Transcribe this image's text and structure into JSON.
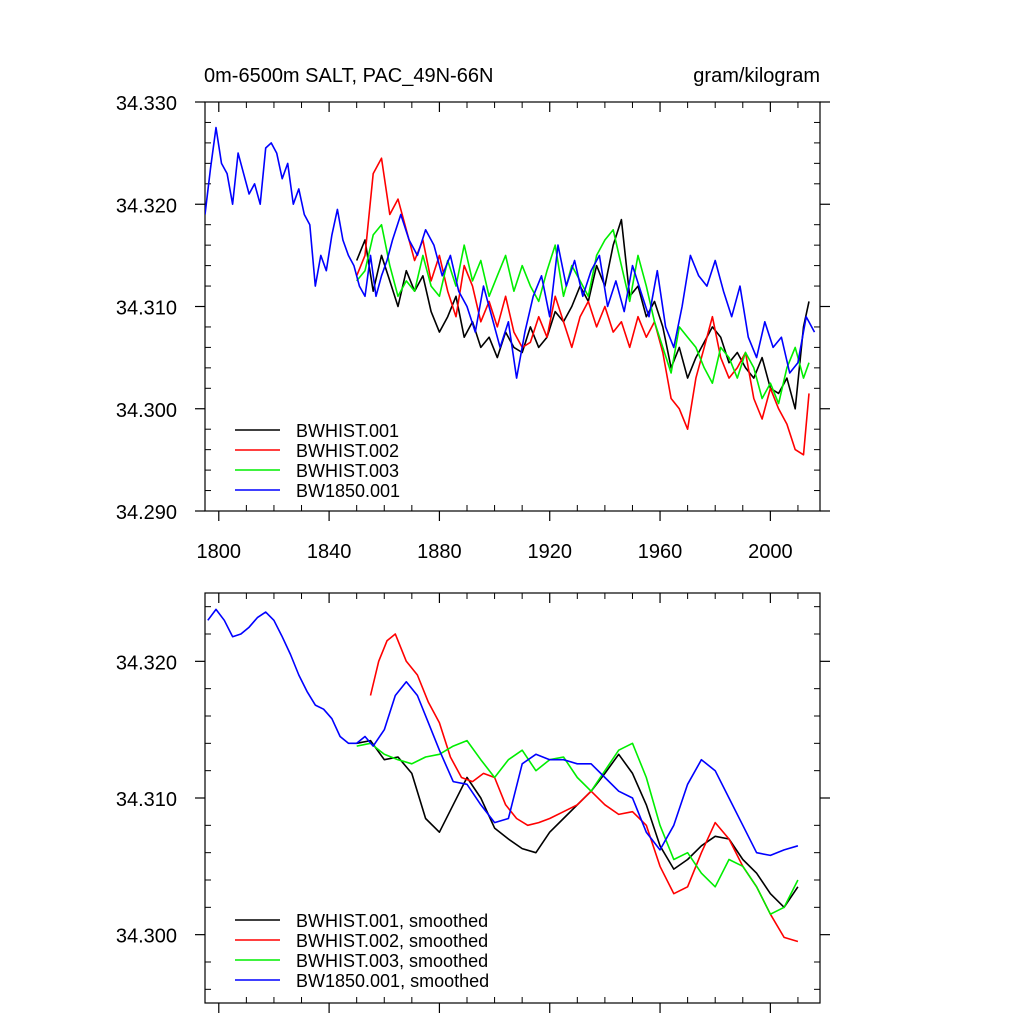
{
  "chart_data": [
    {
      "type": "line",
      "title": "0m-6500m SALT, PAC_49N-66N",
      "units": "gram/kilogram",
      "xlim": [
        1795,
        2018
      ],
      "ylim": [
        34.29,
        34.33
      ],
      "xticks": [
        1800,
        1840,
        1880,
        1920,
        1960,
        2000
      ],
      "xtick_labels": [
        "1800",
        "1840",
        "1880",
        "1920",
        "1960",
        "2000"
      ],
      "yticks": [
        34.29,
        34.3,
        34.31,
        34.32,
        34.33
      ],
      "ytick_labels": [
        "34.290",
        "34.300",
        "34.310",
        "34.320",
        "34.330"
      ],
      "legend_position": "bottom-left",
      "series": [
        {
          "name": "BWHIST.001",
          "color": "#000000",
          "x": [
            1850,
            1853,
            1856,
            1859,
            1862,
            1865,
            1868,
            1871,
            1874,
            1877,
            1880,
            1883,
            1886,
            1889,
            1892,
            1895,
            1898,
            1901,
            1904,
            1907,
            1910,
            1913,
            1916,
            1919,
            1922,
            1925,
            1928,
            1931,
            1934,
            1937,
            1940,
            1943,
            1946,
            1949,
            1952,
            1955,
            1958,
            1961,
            1964,
            1967,
            1970,
            1973,
            1976,
            1979,
            1982,
            1985,
            1988,
            1991,
            1994,
            1997,
            2000,
            2003,
            2006,
            2009,
            2012,
            2014
          ],
          "y": [
            34.3145,
            34.3165,
            34.3115,
            34.315,
            34.3125,
            34.31,
            34.3135,
            34.3115,
            34.313,
            34.3095,
            34.3075,
            34.309,
            34.311,
            34.307,
            34.3085,
            34.306,
            34.307,
            34.305,
            34.3075,
            34.306,
            34.3055,
            34.308,
            34.306,
            34.307,
            34.3095,
            34.3085,
            34.31,
            34.312,
            34.3105,
            34.314,
            34.312,
            34.316,
            34.3185,
            34.311,
            34.312,
            34.309,
            34.3105,
            34.308,
            34.304,
            34.306,
            34.303,
            34.305,
            34.3065,
            34.308,
            34.307,
            34.3045,
            34.3055,
            34.304,
            34.303,
            34.305,
            34.302,
            34.3015,
            34.303,
            34.3,
            34.308,
            34.3105
          ]
        },
        {
          "name": "BWHIST.002",
          "color": "#ff0000",
          "x": [
            1850,
            1853,
            1856,
            1859,
            1862,
            1865,
            1868,
            1871,
            1874,
            1877,
            1880,
            1883,
            1886,
            1889,
            1892,
            1895,
            1898,
            1901,
            1904,
            1907,
            1910,
            1913,
            1916,
            1919,
            1922,
            1925,
            1928,
            1931,
            1934,
            1937,
            1940,
            1943,
            1946,
            1949,
            1952,
            1955,
            1958,
            1961,
            1964,
            1967,
            1970,
            1973,
            1976,
            1979,
            1982,
            1985,
            1988,
            1991,
            1994,
            1997,
            2000,
            2003,
            2006,
            2009,
            2012,
            2014
          ],
          "y": [
            34.313,
            34.315,
            34.323,
            34.3245,
            34.319,
            34.3205,
            34.3175,
            34.3145,
            34.3165,
            34.3125,
            34.315,
            34.3115,
            34.309,
            34.314,
            34.312,
            34.3085,
            34.3105,
            34.308,
            34.311,
            34.3075,
            34.306,
            34.3065,
            34.309,
            34.307,
            34.311,
            34.3085,
            34.306,
            34.309,
            34.3105,
            34.308,
            34.31,
            34.3075,
            34.3085,
            34.306,
            34.309,
            34.307,
            34.3085,
            34.3055,
            34.301,
            34.3,
            34.298,
            34.303,
            34.306,
            34.309,
            34.305,
            34.303,
            34.304,
            34.3055,
            34.301,
            34.299,
            34.302,
            34.3,
            34.2985,
            34.296,
            34.2955,
            34.3015
          ]
        },
        {
          "name": "BWHIST.003",
          "color": "#00ee00",
          "x": [
            1850,
            1853,
            1856,
            1859,
            1862,
            1865,
            1868,
            1871,
            1874,
            1877,
            1880,
            1883,
            1886,
            1889,
            1892,
            1895,
            1898,
            1901,
            1904,
            1907,
            1910,
            1913,
            1916,
            1919,
            1922,
            1925,
            1928,
            1931,
            1934,
            1937,
            1940,
            1943,
            1946,
            1949,
            1952,
            1955,
            1958,
            1961,
            1964,
            1967,
            1970,
            1973,
            1976,
            1979,
            1982,
            1985,
            1988,
            1991,
            1994,
            1997,
            2000,
            2003,
            2006,
            2009,
            2012,
            2014
          ],
          "y": [
            34.3125,
            34.3135,
            34.317,
            34.318,
            34.314,
            34.311,
            34.3125,
            34.3115,
            34.315,
            34.312,
            34.311,
            34.3145,
            34.312,
            34.316,
            34.3125,
            34.3145,
            34.311,
            34.313,
            34.315,
            34.3115,
            34.314,
            34.312,
            34.3105,
            34.3135,
            34.316,
            34.311,
            34.314,
            34.3125,
            34.311,
            34.315,
            34.3165,
            34.3175,
            34.314,
            34.3105,
            34.315,
            34.312,
            34.3085,
            34.306,
            34.3035,
            34.308,
            34.307,
            34.306,
            34.304,
            34.3025,
            34.306,
            34.305,
            34.303,
            34.3055,
            34.304,
            34.301,
            34.3025,
            34.3005,
            34.304,
            34.306,
            34.303,
            34.3045
          ]
        },
        {
          "name": "BW1850.001",
          "color": "#0000ff",
          "x": [
            1795,
            1797,
            1799,
            1801,
            1803,
            1805,
            1807,
            1809,
            1811,
            1813,
            1815,
            1817,
            1819,
            1821,
            1823,
            1825,
            1827,
            1829,
            1831,
            1833,
            1835,
            1837,
            1839,
            1841,
            1843,
            1845,
            1847,
            1849,
            1851,
            1853,
            1855,
            1857,
            1859,
            1861,
            1863,
            1866,
            1869,
            1872,
            1875,
            1878,
            1881,
            1884,
            1887,
            1890,
            1893,
            1896,
            1899,
            1902,
            1905,
            1908,
            1911,
            1914,
            1917,
            1920,
            1923,
            1926,
            1929,
            1932,
            1935,
            1938,
            1941,
            1944,
            1947,
            1950,
            1953,
            1956,
            1959,
            1962,
            1965,
            1968,
            1971,
            1974,
            1977,
            1980,
            1983,
            1986,
            1989,
            1992,
            1995,
            1998,
            2001,
            2004,
            2007,
            2010,
            2013,
            2016
          ],
          "y": [
            34.319,
            34.3235,
            34.3275,
            34.324,
            34.323,
            34.32,
            34.325,
            34.323,
            34.321,
            34.322,
            34.32,
            34.3255,
            34.326,
            34.325,
            34.3225,
            34.324,
            34.32,
            34.3215,
            34.319,
            34.318,
            34.312,
            34.315,
            34.3135,
            34.317,
            34.3195,
            34.3165,
            34.315,
            34.314,
            34.312,
            34.311,
            34.315,
            34.311,
            34.313,
            34.3145,
            34.3165,
            34.319,
            34.3165,
            34.315,
            34.3175,
            34.316,
            34.313,
            34.315,
            34.3115,
            34.31,
            34.3075,
            34.312,
            34.309,
            34.306,
            34.3085,
            34.303,
            34.3075,
            34.311,
            34.313,
            34.309,
            34.316,
            34.312,
            34.3145,
            34.311,
            34.3135,
            34.315,
            34.31,
            34.3125,
            34.3095,
            34.314,
            34.3115,
            34.309,
            34.3135,
            34.308,
            34.306,
            34.31,
            34.315,
            34.313,
            34.312,
            34.3145,
            34.3115,
            34.309,
            34.312,
            34.307,
            34.305,
            34.3085,
            34.306,
            34.307,
            34.3035,
            34.3045,
            34.309,
            34.3075
          ]
        }
      ]
    },
    {
      "type": "line",
      "title": "",
      "xlim": [
        1795,
        2018
      ],
      "ylim": [
        34.295,
        34.325
      ],
      "xticks": [
        1800,
        1840,
        1880,
        1920,
        1960,
        2000
      ],
      "xtick_labels": [],
      "yticks": [
        34.3,
        34.31,
        34.32
      ],
      "ytick_labels": [
        "34.300",
        "34.310",
        "34.320"
      ],
      "legend_position": "bottom-left",
      "series": [
        {
          "name": "BWHIST.001, smoothed",
          "color": "#000000",
          "x": [
            1850,
            1855,
            1860,
            1865,
            1870,
            1875,
            1880,
            1885,
            1890,
            1895,
            1900,
            1905,
            1910,
            1915,
            1920,
            1925,
            1930,
            1935,
            1940,
            1945,
            1950,
            1955,
            1960,
            1965,
            1970,
            1975,
            1980,
            1985,
            1990,
            1995,
            2000,
            2005,
            2010
          ],
          "y": [
            34.314,
            34.3142,
            34.3128,
            34.313,
            34.3118,
            34.3085,
            34.3075,
            34.3095,
            34.3115,
            34.31,
            34.3078,
            34.307,
            34.3063,
            34.306,
            34.3075,
            34.3085,
            34.3095,
            34.3105,
            34.3118,
            34.3132,
            34.3118,
            34.3095,
            34.3065,
            34.3048,
            34.3055,
            34.3065,
            34.3072,
            34.307,
            34.3055,
            34.3045,
            34.303,
            34.302,
            34.3035
          ]
        },
        {
          "name": "BWHIST.002, smoothed",
          "color": "#ff0000",
          "x": [
            1855,
            1858,
            1861,
            1864,
            1868,
            1872,
            1876,
            1880,
            1884,
            1888,
            1892,
            1896,
            1900,
            1904,
            1908,
            1912,
            1916,
            1920,
            1925,
            1930,
            1935,
            1940,
            1945,
            1950,
            1955,
            1960,
            1965,
            1970,
            1975,
            1980,
            1985,
            1990,
            1995,
            2000,
            2005,
            2010
          ],
          "y": [
            34.3175,
            34.32,
            34.3215,
            34.322,
            34.32,
            34.319,
            34.317,
            34.3155,
            34.313,
            34.3115,
            34.3112,
            34.3118,
            34.3115,
            34.3095,
            34.3085,
            34.308,
            34.3082,
            34.3085,
            34.309,
            34.3095,
            34.3105,
            34.3095,
            34.3088,
            34.309,
            34.308,
            34.305,
            34.303,
            34.3035,
            34.306,
            34.3082,
            34.307,
            34.305,
            34.3035,
            34.3015,
            34.2998,
            34.2995
          ]
        },
        {
          "name": "BWHIST.003, smoothed",
          "color": "#00ee00",
          "x": [
            1850,
            1855,
            1860,
            1865,
            1870,
            1875,
            1880,
            1885,
            1890,
            1895,
            1900,
            1905,
            1910,
            1915,
            1920,
            1925,
            1930,
            1935,
            1940,
            1945,
            1950,
            1955,
            1960,
            1965,
            1970,
            1975,
            1980,
            1985,
            1990,
            1995,
            2000,
            2005,
            2010
          ],
          "y": [
            34.3138,
            34.314,
            34.3132,
            34.3128,
            34.3125,
            34.313,
            34.3132,
            34.3138,
            34.3142,
            34.3128,
            34.3115,
            34.3128,
            34.3135,
            34.312,
            34.3128,
            34.313,
            34.3115,
            34.3105,
            34.312,
            34.3135,
            34.314,
            34.3115,
            34.308,
            34.3055,
            34.306,
            34.3045,
            34.3035,
            34.3055,
            34.305,
            34.3035,
            34.3015,
            34.302,
            34.304
          ]
        },
        {
          "name": "BW1850.001, smoothed",
          "color": "#0000ff",
          "x": [
            1796,
            1799,
            1802,
            1805,
            1808,
            1811,
            1814,
            1817,
            1820,
            1823,
            1826,
            1829,
            1832,
            1835,
            1838,
            1841,
            1844,
            1847,
            1850,
            1853,
            1856,
            1860,
            1864,
            1868,
            1872,
            1876,
            1880,
            1885,
            1890,
            1895,
            1900,
            1905,
            1910,
            1915,
            1920,
            1925,
            1930,
            1935,
            1940,
            1945,
            1950,
            1955,
            1960,
            1965,
            1970,
            1975,
            1980,
            1985,
            1990,
            1995,
            2000,
            2005,
            2010
          ],
          "y": [
            34.323,
            34.3238,
            34.323,
            34.3218,
            34.322,
            34.3225,
            34.3232,
            34.3236,
            34.323,
            34.3218,
            34.3205,
            34.319,
            34.3178,
            34.3168,
            34.3165,
            34.3158,
            34.3145,
            34.314,
            34.314,
            34.3145,
            34.3138,
            34.315,
            34.3175,
            34.3185,
            34.3175,
            34.3155,
            34.3135,
            34.3112,
            34.311,
            34.3095,
            34.3082,
            34.3085,
            34.3125,
            34.3132,
            34.3128,
            34.3128,
            34.3125,
            34.3125,
            34.3115,
            34.3105,
            34.31,
            34.3075,
            34.3062,
            34.308,
            34.311,
            34.3128,
            34.312,
            34.31,
            34.308,
            34.306,
            34.3058,
            34.3062,
            34.3065
          ]
        }
      ]
    }
  ]
}
